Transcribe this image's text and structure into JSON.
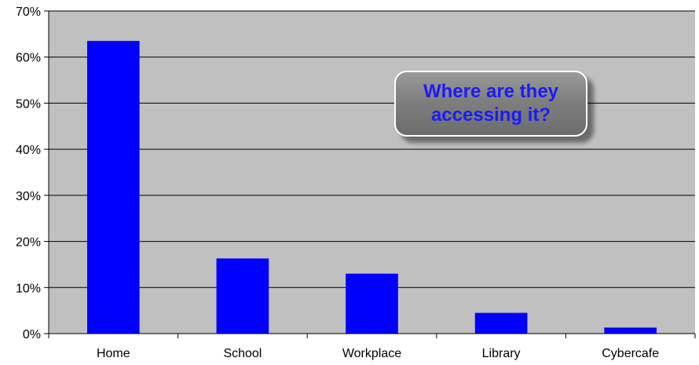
{
  "chart_data": {
    "type": "bar",
    "categories": [
      "Home",
      "School",
      "Workplace",
      "Library",
      "Cybercafe"
    ],
    "values": [
      63.5,
      16.3,
      13.0,
      4.5,
      1.3
    ],
    "ylim": [
      0,
      70
    ],
    "yticks": [
      0,
      10,
      20,
      30,
      40,
      50,
      60,
      70
    ],
    "ytick_format": "%",
    "grid": true,
    "legend": "none",
    "colors": {
      "bar": "#0000ff",
      "plot_bg": "#c0c0c0",
      "grid": "#000000"
    },
    "annotation": "Where are they\naccessing it?"
  }
}
